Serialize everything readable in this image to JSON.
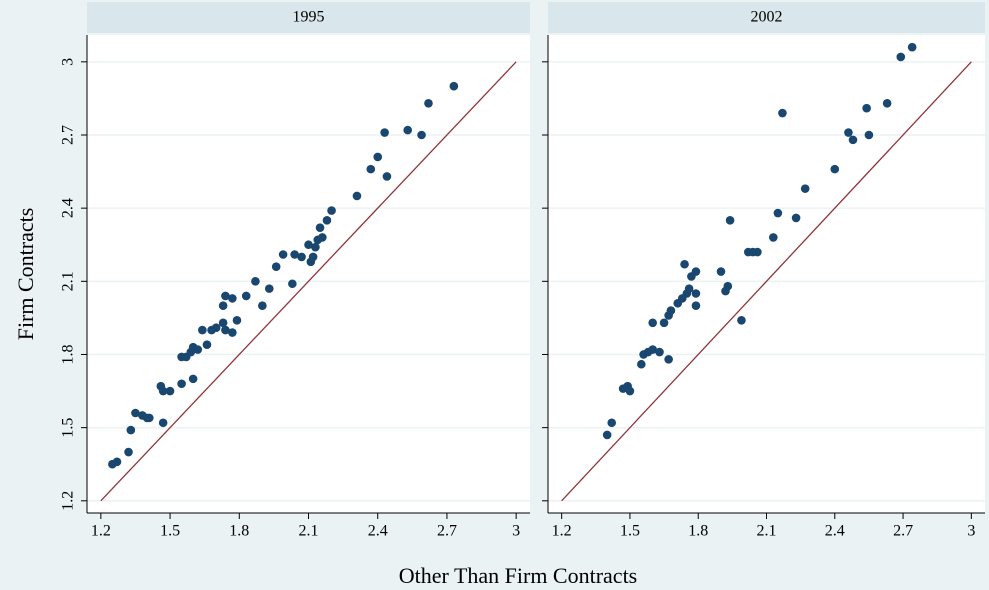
{
  "chart_data": {
    "type": "scatter",
    "ylabel": "Firm Contracts",
    "xlabel": "Other Than Firm Contracts",
    "xlim": [
      1.14,
      3.06
    ],
    "ylim": [
      1.15,
      3.11
    ],
    "xticks": [
      1.2,
      1.5,
      1.8,
      2.1,
      2.4,
      2.7,
      3
    ],
    "yticks": [
      1.2,
      1.5,
      1.8,
      2.1,
      2.4,
      2.7,
      3
    ],
    "grid": true,
    "color": "#1a476f",
    "reference_line": {
      "from": 1.2,
      "to": 3,
      "color": "#90353b"
    },
    "panels": [
      {
        "title": "1995",
        "x": [
          1.25,
          1.27,
          1.32,
          1.33,
          1.35,
          1.38,
          1.4,
          1.41,
          1.47,
          1.46,
          1.47,
          1.5,
          1.55,
          1.55,
          1.57,
          1.59,
          1.6,
          1.6,
          1.62,
          1.64,
          1.66,
          1.68,
          1.7,
          1.73,
          1.73,
          1.74,
          1.74,
          1.77,
          1.77,
          1.79,
          1.83,
          1.87,
          1.9,
          1.93,
          1.96,
          1.99,
          2.03,
          2.04,
          2.07,
          2.1,
          2.11,
          2.12,
          2.13,
          2.15,
          2.14,
          2.16,
          2.18,
          2.2,
          2.31,
          2.37,
          2.4,
          2.44,
          2.43,
          2.53,
          2.59,
          2.62,
          2.73
        ],
        "y": [
          1.35,
          1.36,
          1.4,
          1.49,
          1.56,
          1.55,
          1.54,
          1.54,
          1.52,
          1.67,
          1.65,
          1.65,
          1.68,
          1.79,
          1.79,
          1.81,
          1.83,
          1.7,
          1.82,
          1.9,
          1.84,
          1.9,
          1.91,
          1.93,
          2.0,
          2.04,
          1.9,
          2.03,
          1.89,
          1.94,
          2.04,
          2.1,
          2.0,
          2.07,
          2.16,
          2.21,
          2.09,
          2.21,
          2.2,
          2.25,
          2.18,
          2.2,
          2.24,
          2.32,
          2.27,
          2.28,
          2.35,
          2.39,
          2.45,
          2.56,
          2.61,
          2.53,
          2.71,
          2.72,
          2.7,
          2.83,
          2.9
        ]
      },
      {
        "title": "2002",
        "x": [
          1.4,
          1.42,
          1.47,
          1.49,
          1.5,
          1.55,
          1.56,
          1.58,
          1.6,
          1.6,
          1.63,
          1.65,
          1.67,
          1.67,
          1.68,
          1.71,
          1.73,
          1.74,
          1.75,
          1.76,
          1.77,
          1.79,
          1.79,
          1.79,
          1.9,
          1.92,
          1.93,
          1.94,
          1.99,
          2.02,
          2.04,
          2.06,
          2.13,
          2.15,
          2.17,
          2.23,
          2.27,
          2.4,
          2.46,
          2.48,
          2.54,
          2.55,
          2.63,
          2.69,
          2.74
        ],
        "y": [
          1.47,
          1.52,
          1.66,
          1.67,
          1.65,
          1.76,
          1.8,
          1.81,
          1.82,
          1.93,
          1.81,
          1.93,
          1.78,
          1.96,
          1.98,
          2.01,
          2.03,
          2.17,
          2.05,
          2.07,
          2.12,
          2.14,
          2.0,
          2.05,
          2.14,
          2.06,
          2.08,
          2.35,
          1.94,
          2.22,
          2.22,
          2.22,
          2.28,
          2.38,
          2.79,
          2.36,
          2.48,
          2.56,
          2.71,
          2.68,
          2.81,
          2.7,
          2.83,
          3.02,
          3.06
        ]
      }
    ]
  }
}
